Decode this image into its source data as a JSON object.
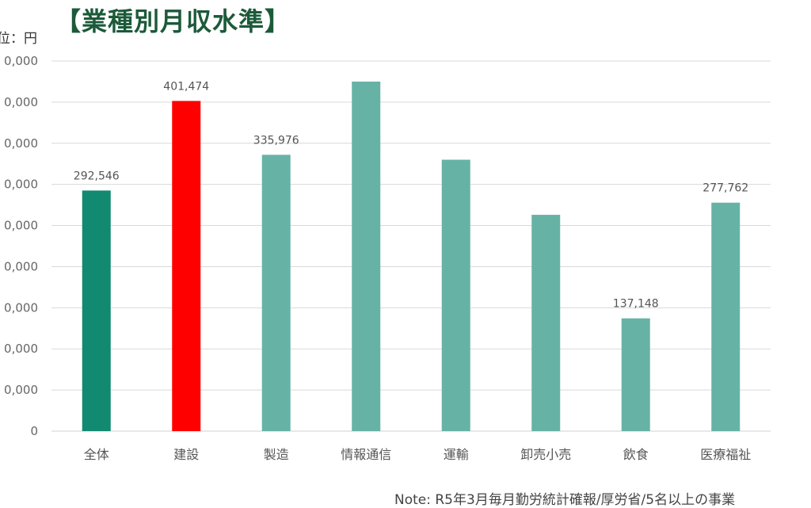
{
  "title": "【業種別月収水準】",
  "unit_label": "位：円",
  "note": "Note: R5年3月毎月勤労統計確報/厚労省/5名以上の事業",
  "colors": {
    "overall": "#128a72",
    "highlight": "#ff0000",
    "default": "#66b3a6",
    "grid": "#d9d9d9",
    "title": "#1c5a3a"
  },
  "chart_data": {
    "type": "bar",
    "categories": [
      "全体",
      "建設",
      "製造",
      "情報通信",
      "運輸",
      "卸売小売",
      "飲食",
      "医療福祉"
    ],
    "values": [
      292546,
      401474,
      335976,
      425000,
      330000,
      263000,
      137148,
      277762
    ],
    "data_labels": [
      "292,546",
      "401,474",
      "335,976",
      "",
      "",
      "",
      "137,148",
      "277,762"
    ],
    "y_ticks": [
      "0",
      "0,000",
      "0,000",
      "0,000",
      "0,000",
      "0,000",
      "0,000",
      "0,000",
      "0,000",
      "0,000"
    ],
    "ylim": [
      0,
      450000
    ],
    "grid": true,
    "legend": "none",
    "bar_colors": [
      "#128a72",
      "#ff0000",
      "#66b3a6",
      "#66b3a6",
      "#66b3a6",
      "#66b3a6",
      "#66b3a6",
      "#66b3a6"
    ]
  }
}
